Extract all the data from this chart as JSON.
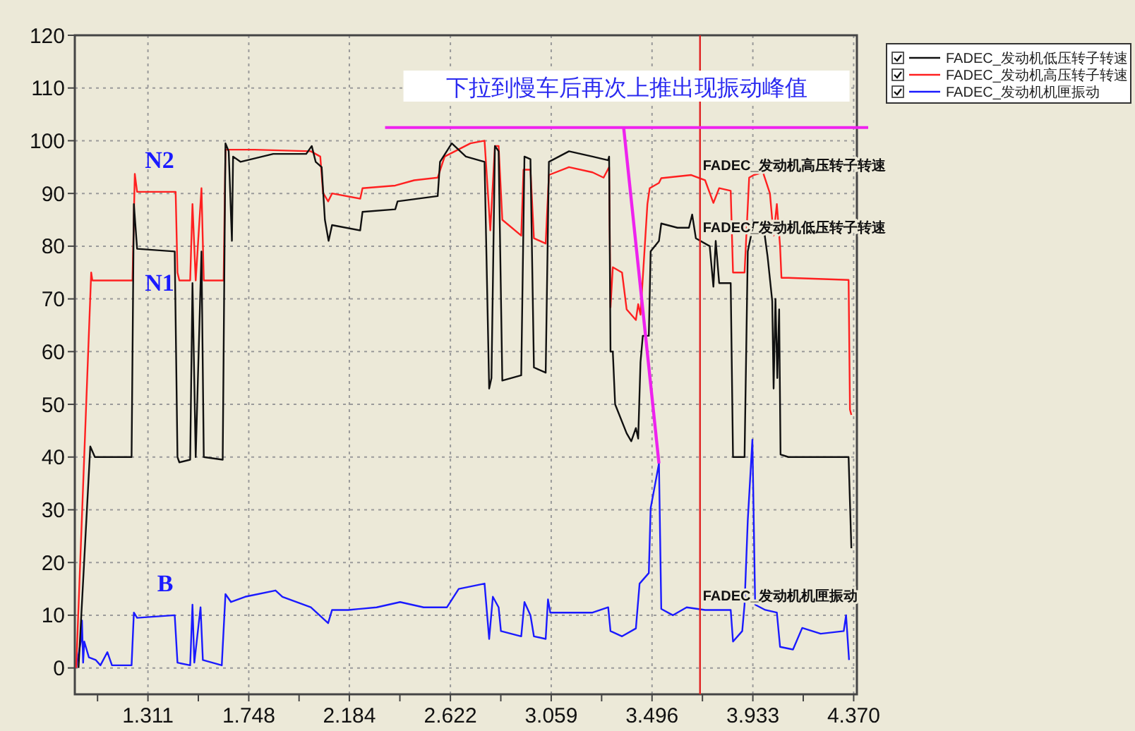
{
  "chart_data": {
    "type": "line",
    "xlim": [
      0.994,
      4.384
    ],
    "ylim": [
      -5,
      120
    ],
    "xticks": [
      {
        "value": 1.0925,
        "label": null
      },
      1.311,
      {
        "value": 1.5295,
        "label": null
      },
      1.748,
      {
        "value": 1.966,
        "label": null
      },
      2.184,
      {
        "value": 2.403,
        "label": null
      },
      2.622,
      {
        "value": 2.8405,
        "label": null
      },
      3.059,
      {
        "value": 3.2775,
        "label": null
      },
      3.496,
      {
        "value": 3.7145,
        "label": null
      },
      3.933,
      {
        "value": 4.1515,
        "label": null
      },
      {
        "value": 4.37,
        "label": "4.370"
      }
    ],
    "yticks": [
      0,
      10,
      20,
      30,
      40,
      50,
      60,
      70,
      80,
      90,
      100,
      110,
      120
    ],
    "grid": true,
    "legend": "top right",
    "ref_lines": [
      {
        "axis": "x",
        "value": 3.704,
        "color": "#e02020"
      },
      {
        "axis": "y",
        "value": 102.5,
        "color": "#ee22ee"
      }
    ],
    "annotations": [
      "N2",
      "N1",
      "B",
      {
        "text": "下拉到慢车后再次上推出现振动峰值",
        "x": 3.526,
        "y": 38.8
      }
    ],
    "series": [
      {
        "name": "FADEC_发动机低压转子转速",
        "color": "#101010",
        "x": [
          1.01,
          1.061,
          1.081,
          1.24,
          1.25,
          1.264,
          1.427,
          1.439,
          1.447,
          1.494,
          1.504,
          1.518,
          1.543,
          1.553,
          1.635,
          1.647,
          1.661,
          1.675,
          1.68,
          1.712,
          1.854,
          1.997,
          2.021,
          2.038,
          2.064,
          2.078,
          2.094,
          2.109,
          2.231,
          2.241,
          2.383,
          2.393,
          2.567,
          2.577,
          2.628,
          2.689,
          2.77,
          2.79,
          2.8,
          2.815,
          2.831,
          2.847,
          2.929,
          2.943,
          2.969,
          2.984,
          3.035,
          3.049,
          3.136,
          3.238,
          3.306,
          3.31,
          3.316,
          3.326,
          3.336,
          3.386,
          3.406,
          3.426,
          3.436,
          3.446,
          3.456,
          3.482,
          3.49,
          3.526,
          3.536,
          3.606,
          3.656,
          3.67,
          3.686,
          3.746,
          3.762,
          3.772,
          3.787,
          3.837,
          3.847,
          3.897,
          3.911,
          3.937,
          3.977,
          3.997,
          4.017,
          4.023,
          4.031,
          4.039,
          4.047,
          4.053,
          4.087,
          4.348,
          4.36
        ],
        "values": [
          0,
          42,
          40,
          40,
          88,
          79.5,
          79,
          40,
          39,
          39.5,
          73,
          40,
          79,
          40,
          39.5,
          99.5,
          98,
          81,
          97,
          96,
          97.5,
          97.5,
          99,
          96,
          95,
          85,
          81,
          84,
          83,
          86.5,
          87,
          88.5,
          89.5,
          96,
          99.5,
          97,
          96,
          53,
          55,
          99,
          98,
          54.5,
          55.5,
          97,
          96.5,
          57,
          56,
          96,
          98,
          97,
          96.3,
          97,
          60,
          60,
          50,
          44.5,
          43,
          45.5,
          43.5,
          58,
          63,
          63,
          79,
          81,
          84.3,
          83.5,
          83.5,
          86,
          81.5,
          80,
          72.3,
          81,
          73,
          73,
          40,
          40,
          79,
          84.5,
          84.5,
          78,
          69.6,
          53,
          70,
          55,
          68,
          40.5,
          40,
          40,
          22.7
        ]
      },
      {
        "name": "FADEC_发动机高压转子转速",
        "color": "#ff2020",
        "x": [
          1.0,
          1.065,
          1.07,
          1.244,
          1.254,
          1.264,
          1.431,
          1.439,
          1.447,
          1.494,
          1.504,
          1.518,
          1.543,
          1.553,
          1.639,
          1.647,
          1.773,
          2.017,
          2.058,
          2.07,
          2.092,
          2.109,
          2.231,
          2.241,
          2.383,
          2.465,
          2.567,
          2.597,
          2.709,
          2.77,
          2.795,
          2.815,
          2.831,
          2.847,
          2.929,
          2.939,
          2.969,
          2.984,
          3.035,
          3.049,
          3.136,
          3.238,
          3.286,
          3.31,
          3.316,
          3.326,
          3.366,
          3.386,
          3.426,
          3.436,
          3.446,
          3.476,
          3.486,
          3.526,
          3.536,
          3.666,
          3.726,
          3.762,
          3.787,
          3.837,
          3.847,
          3.897,
          3.917,
          3.937,
          3.977,
          4.007,
          4.023,
          4.037,
          4.051,
          4.057,
          4.087,
          4.348,
          4.354,
          4.36
        ],
        "values": [
          0,
          75,
          73.5,
          73.5,
          93.7,
          90.3,
          90.3,
          75,
          73.5,
          73.5,
          88,
          73.5,
          91,
          73.5,
          73.5,
          98.3,
          98.3,
          98,
          97,
          90.1,
          88.5,
          90,
          89,
          91,
          91.5,
          92.5,
          93,
          97,
          99.5,
          100,
          83,
          99,
          99,
          85,
          82,
          94.5,
          94.5,
          81.5,
          80.5,
          93.5,
          95,
          94,
          93,
          95,
          68.4,
          76,
          75,
          68,
          66,
          69,
          67,
          88,
          91,
          92,
          92.9,
          93.5,
          92.5,
          88.2,
          91,
          90.5,
          75,
          75,
          93,
          93.5,
          94,
          90,
          82,
          88,
          80,
          74,
          74,
          73.6,
          49,
          48
        ]
      },
      {
        "name": "FADEC_发动机机匣振动",
        "color": "#1a1aff",
        "x": [
          1.0,
          1.02,
          1.025,
          1.03,
          1.035,
          1.055,
          1.085,
          1.105,
          1.135,
          1.155,
          1.24,
          1.25,
          1.264,
          1.427,
          1.439,
          1.494,
          1.504,
          1.512,
          1.539,
          1.549,
          1.631,
          1.647,
          1.671,
          1.732,
          1.864,
          1.894,
          2.017,
          2.092,
          2.109,
          2.18,
          2.302,
          2.404,
          2.506,
          2.607,
          2.658,
          2.77,
          2.79,
          2.806,
          2.831,
          2.841,
          2.929,
          2.943,
          2.969,
          2.984,
          3.035,
          3.045,
          3.055,
          3.238,
          3.306,
          3.316,
          3.366,
          3.426,
          3.442,
          3.482,
          3.49,
          3.51,
          3.526,
          3.536,
          3.586,
          3.646,
          3.726,
          3.837,
          3.847,
          3.887,
          3.897,
          3.911,
          3.931,
          3.943,
          3.987,
          4.037,
          4.051,
          4.107,
          4.147,
          4.227,
          4.327,
          4.337,
          4.35
        ],
        "values": [
          0,
          5,
          9,
          1,
          5,
          2,
          1.5,
          0.5,
          3,
          0.5,
          0.5,
          10.5,
          9.5,
          10,
          1,
          0.5,
          12,
          1,
          11.5,
          1.5,
          0.5,
          14,
          12.5,
          13.5,
          14.7,
          13.5,
          11.5,
          8.5,
          11,
          11,
          11.5,
          12.5,
          11.5,
          11.5,
          15,
          16,
          5.5,
          13.5,
          11.5,
          7,
          6,
          12.5,
          10,
          6,
          5.5,
          13,
          10.5,
          10.5,
          11.5,
          7,
          6,
          7.5,
          16,
          18,
          30.3,
          35,
          38.8,
          11.2,
          10,
          11.5,
          11,
          11,
          5,
          7,
          12,
          28,
          43.3,
          12,
          11,
          10.5,
          4,
          3.5,
          7.6,
          6.5,
          7,
          10,
          1.5
        ]
      }
    ]
  }
}
